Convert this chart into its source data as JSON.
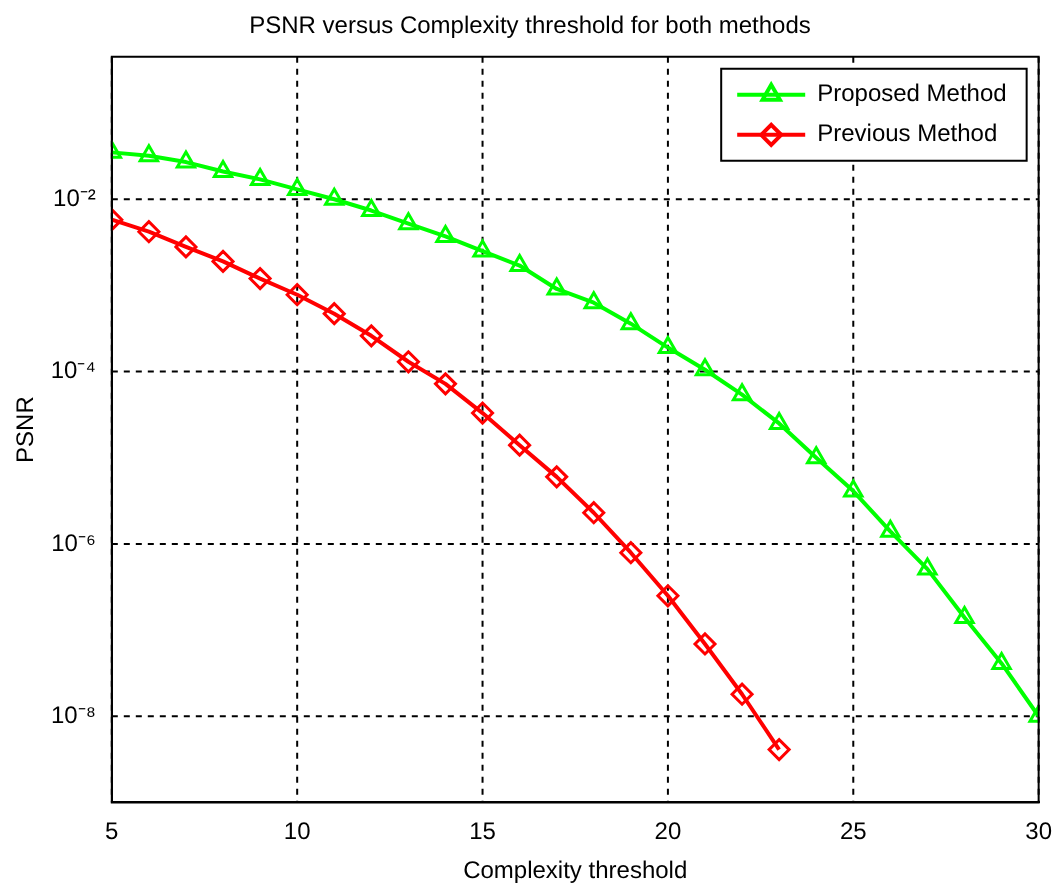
{
  "chart_data": {
    "type": "line",
    "title": "PSNR versus Complexity threshold for both methods",
    "xlabel": "Complexity threshold",
    "ylabel": "PSNR",
    "log": "y",
    "grid": true,
    "legend": "top right",
    "line_style": "solid",
    "xlim": [
      5,
      30
    ],
    "xticks": [
      5,
      10,
      15,
      20,
      25,
      30
    ],
    "ylim": [
      1e-09,
      0.45
    ],
    "yticks": [
      {
        "value": 0.01,
        "label": "10⁻²"
      },
      {
        "value": 0.0001,
        "label": "10⁻⁴"
      },
      {
        "value": 1e-06,
        "label": "10⁻⁶"
      },
      {
        "value": 1e-08,
        "label": "10⁻⁸"
      }
    ],
    "series": [
      {
        "name": "Proposed Method",
        "color": "#00ff00",
        "marker": "triangle",
        "x": [
          5,
          6,
          7,
          8,
          9,
          10,
          11,
          12,
          13,
          14,
          15,
          16,
          17,
          18,
          19,
          20,
          21,
          22,
          23,
          24,
          25,
          26,
          27,
          28,
          29,
          30
        ],
        "values": [
          0.035,
          0.032,
          0.027,
          0.021,
          0.017,
          0.013,
          0.01,
          0.0074,
          0.0052,
          0.0037,
          0.0025,
          0.0017,
          0.00091,
          0.00063,
          0.00036,
          0.00019,
          0.000105,
          5.4e-05,
          2.5e-05,
          1e-05,
          4.1e-06,
          1.4e-06,
          5.1e-07,
          1.4e-07,
          4.1e-08,
          1e-08
        ]
      },
      {
        "name": "Previous Method",
        "color": "#ff0000",
        "marker": "diamond",
        "x": [
          5,
          6,
          7,
          8,
          9,
          10,
          11,
          12,
          13,
          14,
          15,
          16,
          17,
          18,
          19,
          20,
          21,
          22,
          23
        ],
        "values": [
          0.0058,
          0.0042,
          0.0028,
          0.0019,
          0.0012,
          0.00078,
          0.00047,
          0.00026,
          0.00013,
          7.2e-05,
          3.3e-05,
          1.4e-05,
          6e-06,
          2.3e-06,
          7.9e-07,
          2.5e-07,
          6.9e-08,
          1.8e-08,
          4.1e-09
        ]
      }
    ]
  }
}
